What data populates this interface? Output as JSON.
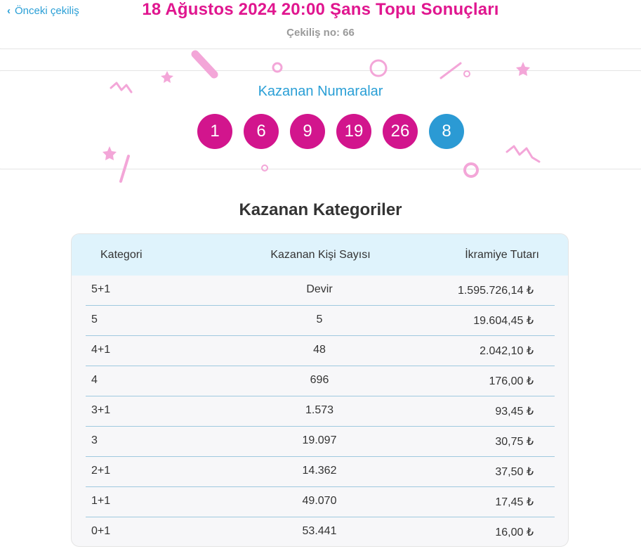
{
  "header": {
    "back_label": "Önceki çekiliş",
    "title": "18 Ağustos 2024 20:00 Şans Topu Sonuçları",
    "draw_number": "Çekiliş no: 66"
  },
  "numbers": {
    "title": "Kazanan Numaralar",
    "main": [
      "1",
      "6",
      "9",
      "19",
      "26"
    ],
    "bonus": "8"
  },
  "categories": {
    "title": "Kazanan Kategoriler",
    "columns": {
      "category": "Kategori",
      "winners": "Kazanan Kişi Sayısı",
      "prize": "İkramiye Tutarı"
    },
    "rows": [
      {
        "category": "5+1",
        "winners": "Devir",
        "prize": "1.595.726,14 ₺"
      },
      {
        "category": "5",
        "winners": "5",
        "prize": "19.604,45 ₺"
      },
      {
        "category": "4+1",
        "winners": "48",
        "prize": "2.042,10 ₺"
      },
      {
        "category": "4",
        "winners": "696",
        "prize": "176,00 ₺"
      },
      {
        "category": "3+1",
        "winners": "1.573",
        "prize": "93,45 ₺"
      },
      {
        "category": "3",
        "winners": "19.097",
        "prize": "30,75 ₺"
      },
      {
        "category": "2+1",
        "winners": "14.362",
        "prize": "37,50 ₺"
      },
      {
        "category": "1+1",
        "winners": "49.070",
        "prize": "17,45 ₺"
      },
      {
        "category": "0+1",
        "winners": "53.441",
        "prize": "16,00 ₺"
      }
    ]
  },
  "colors": {
    "accent_pink": "#e0168f",
    "ball_pink": "#d2158d",
    "ball_blue": "#2b9ad4",
    "link_blue": "#2a9fd6",
    "table_header_bg": "#dff3fc"
  }
}
